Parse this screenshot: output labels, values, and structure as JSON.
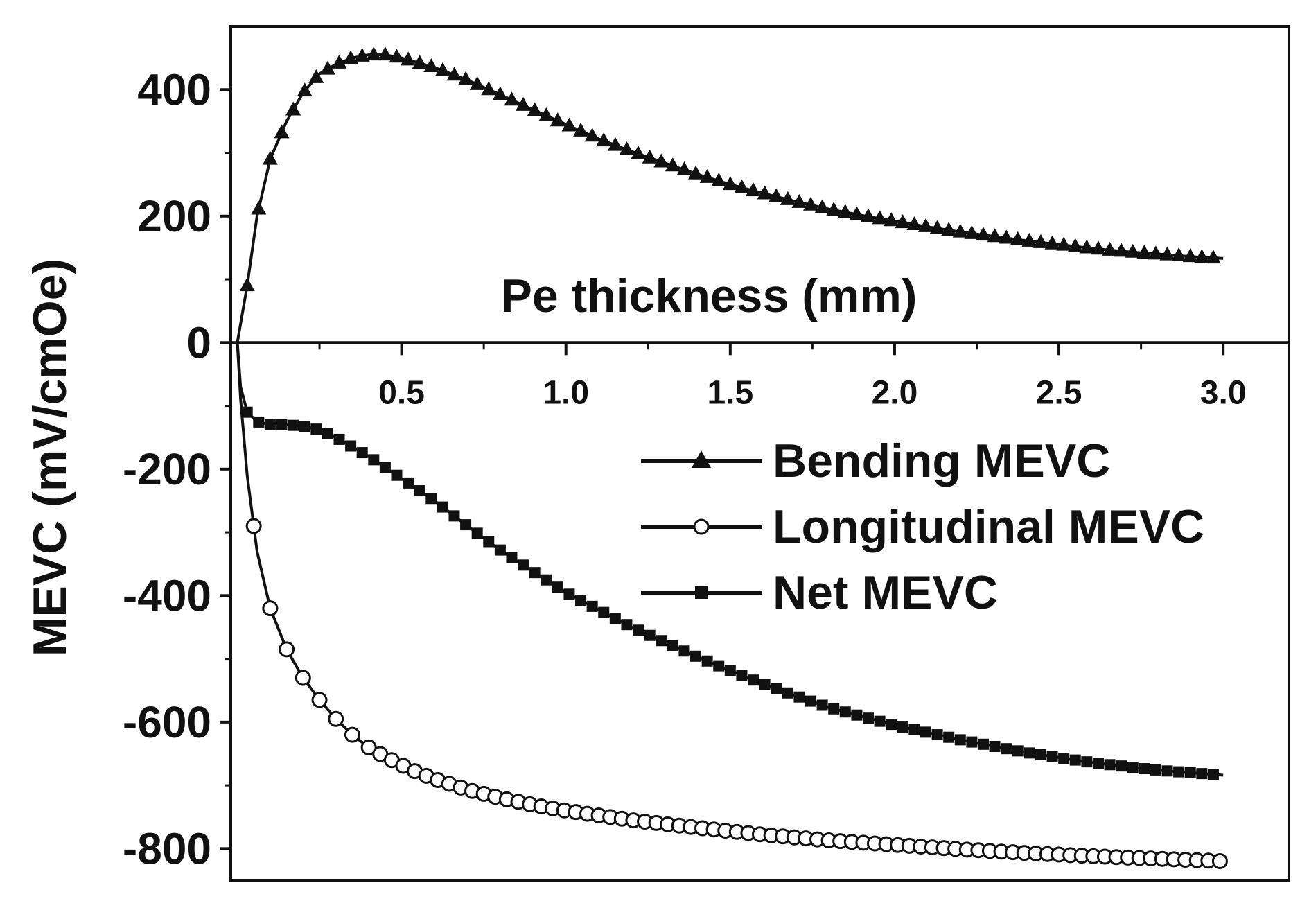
{
  "chart_data": {
    "type": "line",
    "title": "",
    "xlabel": "Pe thickness (mm)",
    "ylabel": "MEVC (mV/cmOe)",
    "xlim": [
      -0.02,
      3.2
    ],
    "ylim": [
      -850,
      500
    ],
    "x_ticks": [
      "0.5",
      "1.0",
      "1.5",
      "2.0",
      "2.5",
      "3.0"
    ],
    "y_ticks": [
      "400",
      "200",
      "0",
      "-200",
      "-400",
      "-600",
      "-800"
    ],
    "x_axis_position": "y = 0",
    "legend_position": "center-right",
    "series": [
      {
        "name": "Bending MEVC",
        "marker": "filled-triangle",
        "x": [
          0.0,
          0.03,
          0.06,
          0.1,
          0.15,
          0.2,
          0.25,
          0.3,
          0.35,
          0.4,
          0.45,
          0.5,
          0.6,
          0.7,
          0.8,
          0.9,
          1.0,
          1.1,
          1.2,
          1.3,
          1.4,
          1.5,
          1.6,
          1.7,
          1.8,
          1.9,
          2.0,
          2.1,
          2.2,
          2.3,
          2.4,
          2.5,
          2.6,
          2.7,
          2.8,
          2.9,
          3.0
        ],
        "values": [
          0,
          90,
          200,
          290,
          350,
          395,
          425,
          440,
          450,
          455,
          455,
          450,
          435,
          415,
          392,
          368,
          345,
          322,
          302,
          284,
          266,
          250,
          236,
          223,
          211,
          201,
          192,
          183,
          175,
          168,
          161,
          155,
          149,
          144,
          140,
          136,
          133
        ]
      },
      {
        "name": "Longitudinal MEVC",
        "marker": "open-circle",
        "x": [
          0.0,
          0.01,
          0.03,
          0.06,
          0.1,
          0.15,
          0.2,
          0.25,
          0.3,
          0.35,
          0.4,
          0.45,
          0.5,
          0.55,
          0.6,
          0.7,
          0.8,
          0.9,
          1.0,
          1.2,
          1.4,
          1.6,
          1.8,
          2.0,
          2.2,
          2.4,
          2.6,
          2.8,
          3.0
        ],
        "values": [
          0,
          -90,
          -210,
          -330,
          -420,
          -485,
          -530,
          -565,
          -595,
          -620,
          -640,
          -655,
          -668,
          -680,
          -690,
          -707,
          -720,
          -731,
          -740,
          -755,
          -767,
          -778,
          -787,
          -794,
          -801,
          -807,
          -812,
          -816,
          -820
        ]
      },
      {
        "name": "Net MEVC",
        "marker": "filled-square",
        "x": [
          0.0,
          0.01,
          0.03,
          0.06,
          0.1,
          0.15,
          0.2,
          0.25,
          0.3,
          0.35,
          0.4,
          0.5,
          0.6,
          0.7,
          0.8,
          0.9,
          1.0,
          1.2,
          1.4,
          1.6,
          1.8,
          2.0,
          2.2,
          2.4,
          2.6,
          2.8,
          3.0
        ],
        "values": [
          0,
          -70,
          -110,
          -125,
          -130,
          -130,
          -132,
          -138,
          -150,
          -165,
          -180,
          -215,
          -250,
          -290,
          -328,
          -362,
          -395,
          -450,
          -497,
          -540,
          -577,
          -605,
          -628,
          -648,
          -664,
          -676,
          -684
        ]
      }
    ]
  }
}
